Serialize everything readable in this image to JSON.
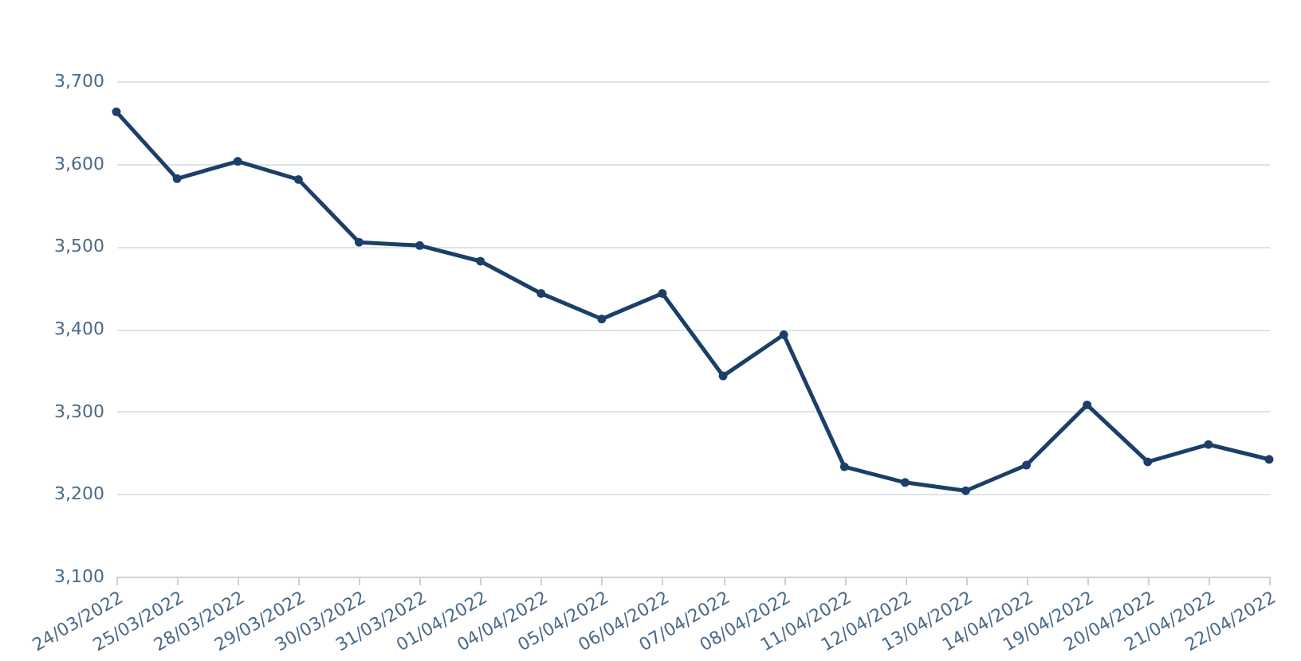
{
  "chart_data": {
    "type": "line",
    "categories": [
      "24/03/2022",
      "25/03/2022",
      "28/03/2022",
      "29/03/2022",
      "30/03/2022",
      "31/03/2022",
      "01/04/2022",
      "04/04/2022",
      "05/04/2022",
      "06/04/2022",
      "07/04/2022",
      "08/04/2022",
      "11/04/2022",
      "12/04/2022",
      "13/04/2022",
      "14/04/2022",
      "19/04/2022",
      "20/04/2022",
      "21/04/2022",
      "22/04/2022"
    ],
    "values": [
      3663,
      3582,
      3603,
      3581,
      3505,
      3501,
      3482,
      3443,
      3412,
      3443,
      3343,
      3393,
      3233,
      3214,
      3204,
      3235,
      3308,
      3239,
      3260,
      3242
    ],
    "color": "#1b3f69",
    "ylim": [
      3100,
      3700
    ],
    "yticks": [
      {
        "value": 3100,
        "label": "3,100"
      },
      {
        "value": 3200,
        "label": "3,200"
      },
      {
        "value": 3300,
        "label": "3,300"
      },
      {
        "value": 3400,
        "label": "3,400"
      },
      {
        "value": 3500,
        "label": "3,500"
      },
      {
        "value": 3600,
        "label": "3,600"
      },
      {
        "value": 3700,
        "label": "3,700"
      }
    ],
    "grid": "y",
    "marker": "circle",
    "line_style": "solid"
  }
}
